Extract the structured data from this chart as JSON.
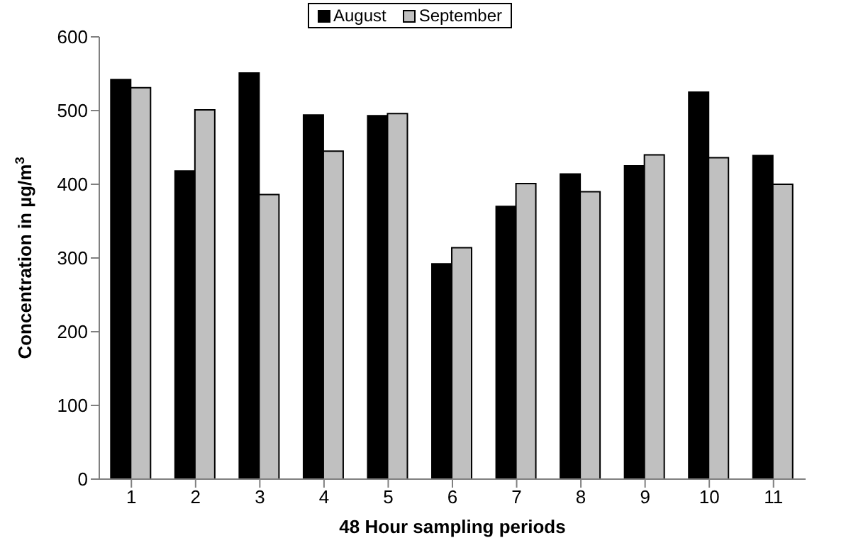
{
  "chart_data": {
    "type": "bar",
    "xlabel": "48 Hour sampling periods",
    "ylabel": "Concentration in µg/m$^{3}$",
    "categories": [
      "1",
      "2",
      "3",
      "4",
      "5",
      "6",
      "7",
      "8",
      "9",
      "10",
      "11"
    ],
    "series": [
      {
        "name": "August",
        "color": "#000000",
        "values": [
          542,
          418,
          551,
          494,
          493,
          292,
          370,
          414,
          425,
          525,
          439
        ]
      },
      {
        "name": "September",
        "color": "#c0c0c0",
        "values": [
          531,
          501,
          386,
          445,
          496,
          314,
          401,
          390,
          440,
          436,
          400
        ]
      }
    ],
    "ylim": [
      0,
      600
    ],
    "yticks": [
      0,
      100,
      200,
      300,
      400,
      500,
      600
    ],
    "grid": false,
    "legend": "top"
  }
}
